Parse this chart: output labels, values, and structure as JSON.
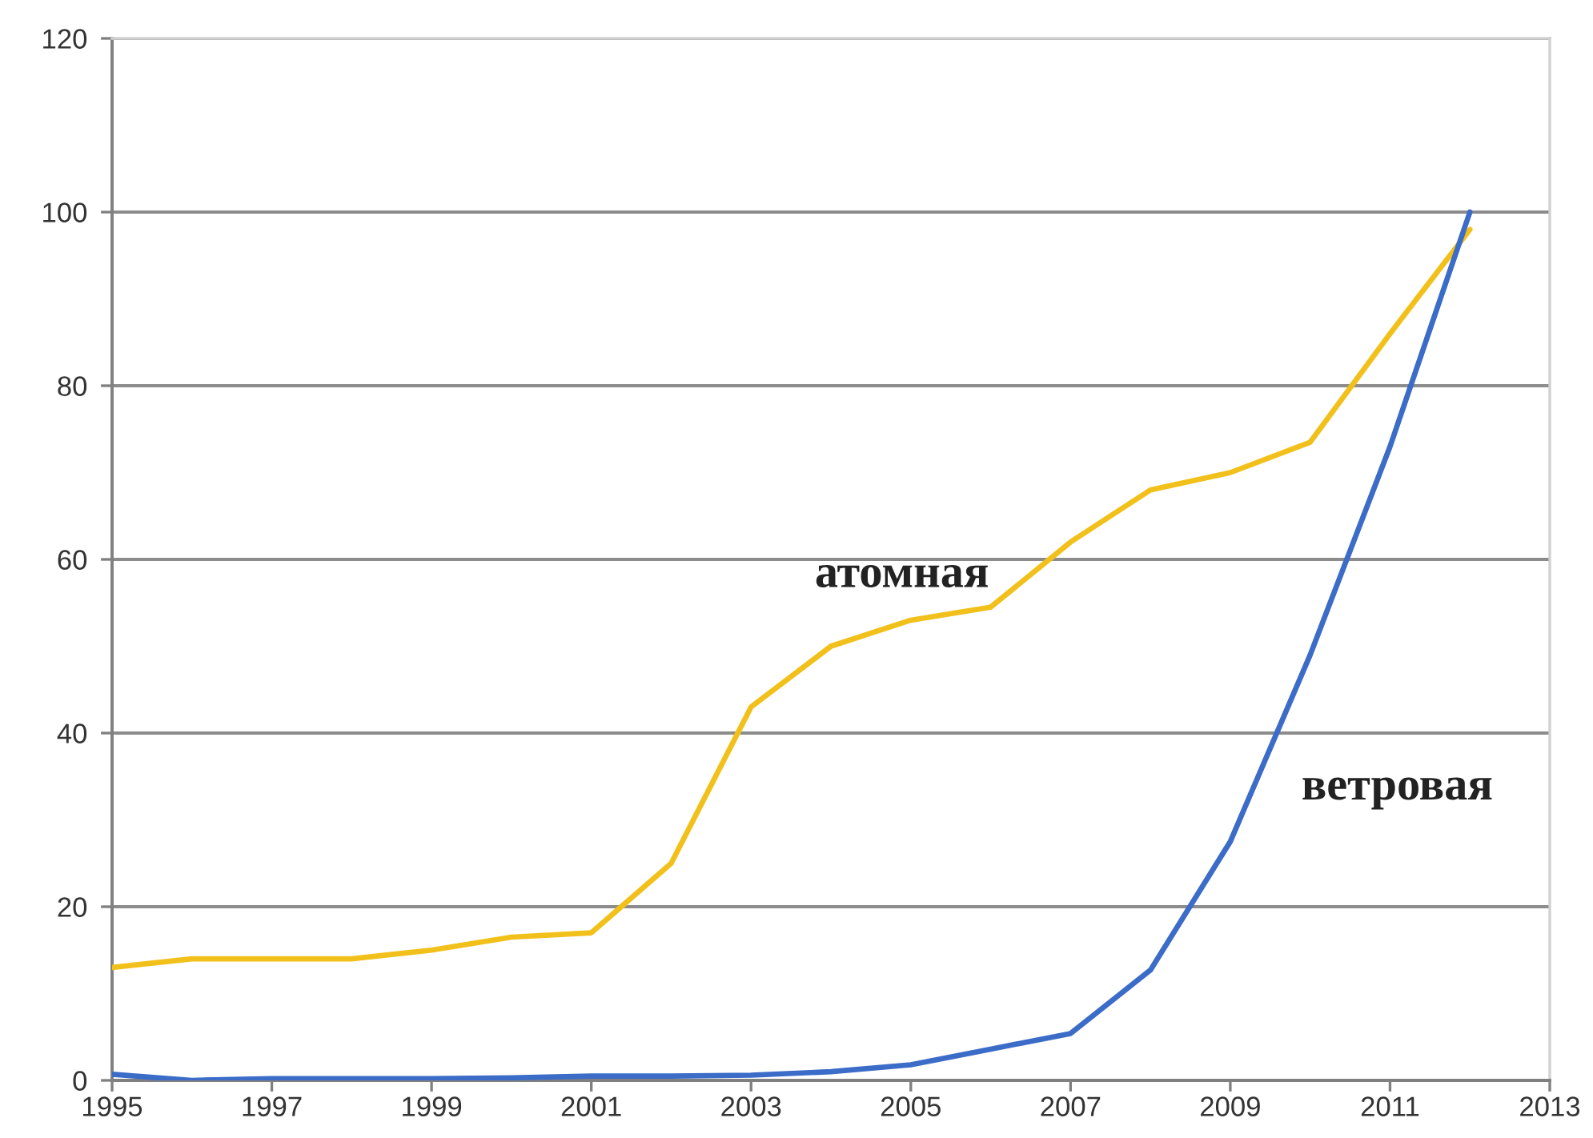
{
  "chart_data": {
    "type": "line",
    "x": [
      1995,
      1996,
      1997,
      1998,
      1999,
      2000,
      2001,
      2002,
      2003,
      2004,
      2005,
      2006,
      2007,
      2008,
      2009,
      2010,
      2011,
      2012
    ],
    "xlim": [
      1995,
      2013
    ],
    "xticks": [
      1995,
      1997,
      1999,
      2001,
      2003,
      2005,
      2007,
      2009,
      2011,
      2013
    ],
    "ylim": [
      0,
      120
    ],
    "yticks": [
      0,
      20,
      40,
      60,
      80,
      100,
      120
    ],
    "grid": "y",
    "series": [
      {
        "name": "атомная",
        "color": "#f2c01a",
        "values": [
          13,
          14,
          14,
          14,
          15,
          16.5,
          17,
          25,
          43,
          50,
          53,
          54.5,
          62,
          68,
          70,
          73.5,
          86,
          98
        ]
      },
      {
        "name": "ветровая",
        "color": "#3b6cc7",
        "values": [
          0.7,
          0,
          0.2,
          0.2,
          0.2,
          0.3,
          0.5,
          0.5,
          0.6,
          1,
          1.8,
          3.6,
          5.4,
          12.7,
          27.5,
          49,
          73,
          100
        ]
      }
    ]
  }
}
